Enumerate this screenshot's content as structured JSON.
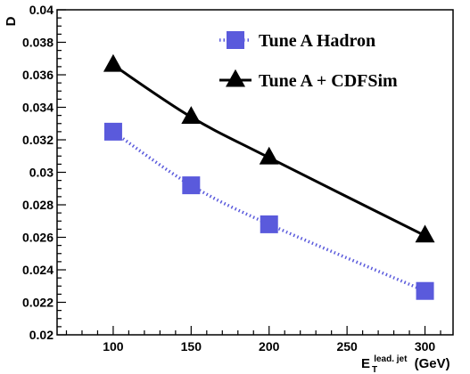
{
  "chart_data": {
    "type": "line",
    "x": [
      100,
      150,
      200,
      300
    ],
    "series": [
      {
        "name": "Tune A Hadron",
        "values": [
          0.0325,
          0.0292,
          0.0268,
          0.0227
        ],
        "color": "#5a5adc",
        "marker": "square",
        "line_style": "dotted"
      },
      {
        "name": "Tune A + CDFSim",
        "values": [
          0.0366,
          0.0334,
          0.0309,
          0.0261
        ],
        "color": "#000000",
        "marker": "triangle",
        "line_style": "solid"
      }
    ],
    "xlim": [
      64,
      318
    ],
    "ylim": [
      0.02,
      0.04
    ],
    "xticks": [
      100,
      150,
      200,
      250,
      300
    ],
    "yticks": [
      0.02,
      0.022,
      0.024,
      0.026,
      0.028,
      0.03,
      0.032,
      0.034,
      0.036,
      0.038,
      0.04
    ],
    "xtick_labels": [
      "100",
      "150",
      "200",
      "250",
      "300"
    ],
    "ytick_labels": [
      "0.02",
      "0.022",
      "0.024",
      "0.026",
      "0.028",
      "0.03",
      "0.032",
      "0.034",
      "0.036",
      "0.038",
      "0.04"
    ],
    "ylabel": "D",
    "xlabel_base": "E",
    "xlabel_sub": "T",
    "xlabel_sup": "lead. jet",
    "xlabel_unit": "(GeV)",
    "grid": false,
    "legend_position": "top-right"
  }
}
